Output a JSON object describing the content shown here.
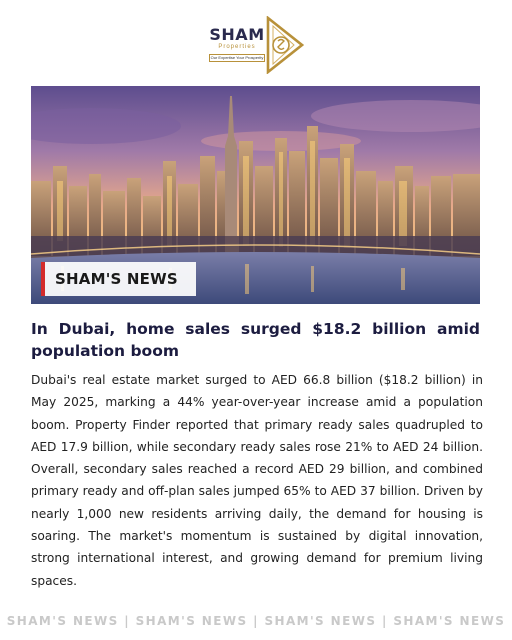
{
  "logo": {
    "name": "SHAM",
    "subtitle": "Properties",
    "tagline": "Our Expertise Your Prosperity"
  },
  "hero": {
    "badge": "SHAM'S NEWS",
    "image": "Dubai skyline at sunset with skyscrapers and waterfront"
  },
  "article": {
    "headline": "In Dubai, home sales surged $18.2 billion amid population boom",
    "body": "Dubai's real estate market surged to AED 66.8 billion ($18.2 billion) in May 2025, marking a 44% year-over-year increase amid a population boom. Property Finder reported that primary ready sales quadrupled to AED 17.9 billion, while secondary ready sales rose 21% to AED 24 billion. Overall, secondary sales reached a record AED 29 billion, and combined primary ready and off-plan sales jumped 65% to AED 37 billion. Driven by nearly 1,000 new residents arriving daily, the demand for housing is soaring. The market's momentum is sustained by digital innovation, strong international interest, and growing demand for premium living spaces."
  },
  "footer": {
    "text": "SHAM'S NEWS | SHAM'S NEWS | SHAM'S NEWS | SHAM'S NEWS"
  },
  "colors": {
    "brand_navy": "#2a2a4e",
    "brand_gold": "#b8913a",
    "badge_accent": "#d42b2b",
    "footer_gray": "#c9c9c9"
  }
}
